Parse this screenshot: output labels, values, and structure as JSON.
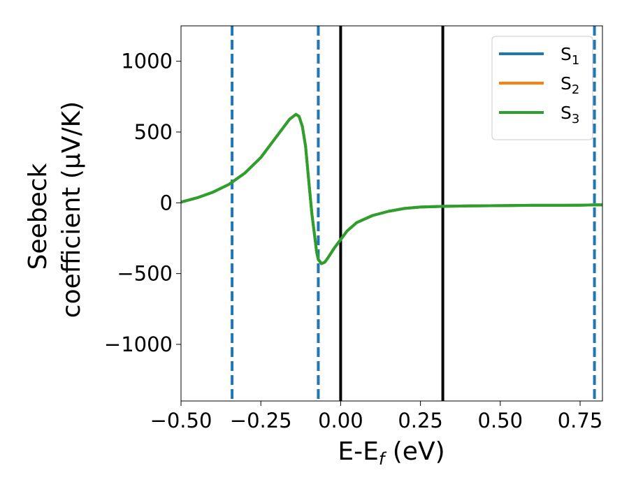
{
  "chart_data": {
    "type": "line",
    "xlabel": "E-E",
    "xlabel_sub": "f",
    "xlabel_unit": " (eV)",
    "ylabel_line1": "Seebeck",
    "ylabel_line2": "coefficient  (μV/K)",
    "xlim": [
      -0.5,
      0.82
    ],
    "ylim": [
      -1400,
      1250
    ],
    "x_ticks": [
      -0.5,
      -0.25,
      0.0,
      0.25,
      0.5,
      0.75
    ],
    "x_tick_labels": [
      "−0.50",
      "−0.25",
      "0.00",
      "0.25",
      "0.50",
      "0.75"
    ],
    "y_ticks": [
      1000,
      500,
      0,
      -500,
      -1000
    ],
    "y_tick_labels": [
      "1000",
      "500",
      "0",
      "−500",
      "−1000"
    ],
    "grid": false,
    "legend_position": "top-right",
    "series": [
      {
        "name": "S",
        "sub": "1",
        "color": "#1f77b4",
        "x": [
          -0.5,
          -0.45,
          -0.4,
          -0.35,
          -0.3,
          -0.25,
          -0.2,
          -0.16,
          -0.14,
          -0.13,
          -0.12,
          -0.11,
          -0.1,
          -0.09,
          -0.08,
          -0.075,
          -0.07,
          -0.06,
          -0.05,
          -0.04,
          -0.02,
          0.0,
          0.02,
          0.05,
          0.1,
          0.15,
          0.2,
          0.25,
          0.32,
          0.4,
          0.5,
          0.6,
          0.7,
          0.75,
          0.8,
          0.82
        ],
        "y": [
          5,
          35,
          75,
          130,
          210,
          320,
          470,
          590,
          625,
          610,
          540,
          400,
          160,
          -80,
          -260,
          -350,
          -400,
          -430,
          -420,
          -390,
          -320,
          -260,
          -200,
          -140,
          -90,
          -60,
          -40,
          -30,
          -25,
          -22,
          -20,
          -18,
          -18,
          -17,
          -15,
          -15
        ]
      },
      {
        "name": "S",
        "sub": "2",
        "color": "#ff7f0e",
        "x": [
          -0.5,
          -0.45,
          -0.4,
          -0.35,
          -0.3,
          -0.25,
          -0.2,
          -0.16,
          -0.14,
          -0.13,
          -0.12,
          -0.11,
          -0.1,
          -0.09,
          -0.08,
          -0.075,
          -0.07,
          -0.06,
          -0.05,
          -0.04,
          -0.02,
          0.0,
          0.02,
          0.05,
          0.1,
          0.15,
          0.2,
          0.25,
          0.32,
          0.4,
          0.5,
          0.6,
          0.7,
          0.75,
          0.8,
          0.82
        ],
        "y": [
          5,
          35,
          75,
          130,
          210,
          320,
          470,
          590,
          625,
          610,
          540,
          400,
          160,
          -80,
          -260,
          -350,
          -400,
          -430,
          -420,
          -390,
          -320,
          -260,
          -200,
          -140,
          -90,
          -60,
          -40,
          -30,
          -25,
          -22,
          -20,
          -18,
          -18,
          -17,
          -15,
          -15
        ]
      },
      {
        "name": "S",
        "sub": "3",
        "color": "#2ca02c",
        "x": [
          -0.5,
          -0.45,
          -0.4,
          -0.35,
          -0.3,
          -0.25,
          -0.2,
          -0.16,
          -0.14,
          -0.13,
          -0.12,
          -0.11,
          -0.1,
          -0.09,
          -0.08,
          -0.075,
          -0.07,
          -0.06,
          -0.05,
          -0.04,
          -0.02,
          0.0,
          0.02,
          0.05,
          0.1,
          0.15,
          0.2,
          0.25,
          0.32,
          0.4,
          0.5,
          0.6,
          0.7,
          0.75,
          0.8,
          0.82
        ],
        "y": [
          5,
          35,
          75,
          130,
          210,
          320,
          470,
          590,
          625,
          610,
          540,
          400,
          160,
          -80,
          -260,
          -350,
          -400,
          -430,
          -420,
          -390,
          -320,
          -260,
          -200,
          -140,
          -90,
          -60,
          -40,
          -30,
          -25,
          -22,
          -20,
          -18,
          -18,
          -17,
          -15,
          -15
        ]
      }
    ],
    "vlines": [
      {
        "x": -0.34,
        "color": "#1f77b4",
        "style": "dashed"
      },
      {
        "x": -0.07,
        "color": "#1f77b4",
        "style": "dashed"
      },
      {
        "x": 0.0,
        "color": "#000000",
        "style": "solid"
      },
      {
        "x": 0.32,
        "color": "#000000",
        "style": "solid"
      },
      {
        "x": 0.795,
        "color": "#1f77b4",
        "style": "dashed"
      }
    ]
  }
}
